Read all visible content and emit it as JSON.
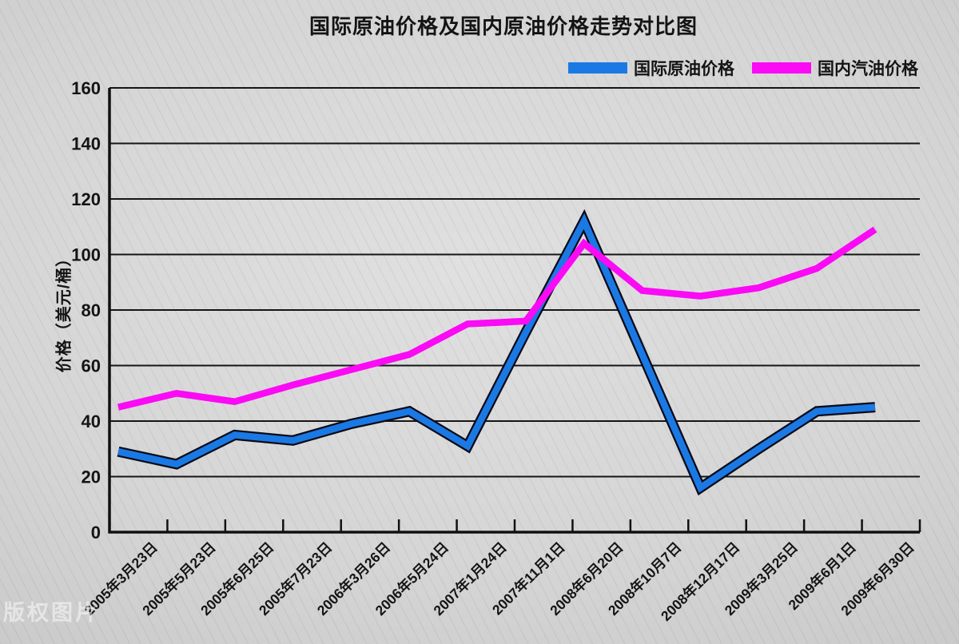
{
  "watermark": "版权图片",
  "text_color": "#141414",
  "background_color": "#d5d5d5",
  "chart_data": {
    "type": "line",
    "title": "国际原油价格及国内原油价格走势对比图",
    "xlabel": "",
    "ylabel": "价格（美元/桶）",
    "ylim": [
      0,
      160
    ],
    "ytick_step": 20,
    "yticks": [
      0,
      20,
      40,
      60,
      80,
      100,
      120,
      140,
      160
    ],
    "grid": true,
    "legend_position": "top-right",
    "categories": [
      "2005年3月23日",
      "2005年5月23日",
      "2005年6月25日",
      "2005年7月23日",
      "2006年3月26日",
      "2006年5月24日",
      "2007年1月24日",
      "2007年11月1日",
      "2008年6月20日",
      "2008年10月7日",
      "2008年12月17日",
      "2009年3月25日",
      "2009年6月1日",
      "2009年6月30日"
    ],
    "series": [
      {
        "name": "国际原油价格",
        "color": "#1b79e4",
        "outline": "#0a0a18",
        "values": [
          29,
          24.5,
          35,
          33,
          39,
          43.5,
          31,
          72,
          112,
          64,
          16,
          30,
          43.5,
          45
        ]
      },
      {
        "name": "国内汽油价格",
        "color": "#fa0af5",
        "outline": null,
        "values": [
          45,
          50,
          47,
          53,
          58.5,
          64,
          75,
          76,
          104,
          87,
          85,
          88,
          95,
          109
        ]
      }
    ]
  }
}
